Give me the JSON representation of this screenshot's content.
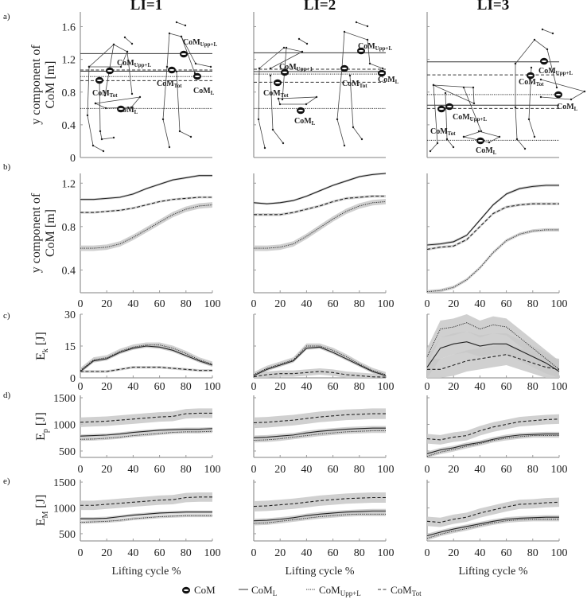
{
  "chart_data": {
    "type": "line",
    "columns": [
      "LI=1",
      "LI=2",
      "LI=3"
    ],
    "panel_letters": [
      "a)",
      "b)",
      "c)",
      "d)",
      "e)"
    ],
    "xlabel": "Lifting cycle %",
    "xticks": [
      0,
      20,
      40,
      60,
      80,
      100
    ],
    "x": [
      0,
      10,
      20,
      30,
      40,
      50,
      60,
      70,
      80,
      90,
      100
    ],
    "legend": {
      "position": "bottom",
      "items": [
        {
          "label": "CoM",
          "sub": "",
          "style": "marker"
        },
        {
          "label": "CoM",
          "sub": "L",
          "style": "solid"
        },
        {
          "label": "CoM",
          "sub": "Upp+L",
          "style": "dotted"
        },
        {
          "label": "CoM",
          "sub": "Tot",
          "style": "dashed"
        }
      ]
    },
    "rows": {
      "a": {
        "ylabel": [
          "y component of",
          "CoM [m]"
        ],
        "ylim": [
          0,
          1.78
        ],
        "yticks": [
          "0",
          "0.4",
          "0.8",
          "1.2",
          "1.6"
        ],
        "ytick_values": [
          0,
          0.4,
          0.8,
          1.2,
          1.6
        ],
        "annotation_labels": {
          "upp": "Upp+L",
          "upp_col2": "Upp+1",
          "tot": "Tot",
          "l": "L",
          "com": "CoM"
        },
        "reference_lines": [
          [
            {
              "y": 1.27,
              "style": "solid"
            },
            {
              "y": 1.07,
              "style": "dashed"
            },
            {
              "y": 1.055,
              "style": "solid"
            },
            {
              "y": 0.99,
              "style": "dotted"
            },
            {
              "y": 0.94,
              "style": "dashed"
            },
            {
              "y": 0.6,
              "style": "dotted"
            }
          ],
          [
            {
              "y": 1.28,
              "style": "solid"
            },
            {
              "y": 1.08,
              "style": "dashed"
            },
            {
              "y": 1.05,
              "style": "solid"
            },
            {
              "y": 1.02,
              "style": "dotted"
            },
            {
              "y": 0.92,
              "style": "dashed"
            },
            {
              "y": 0.6,
              "style": "dotted"
            }
          ],
          [
            {
              "y": 1.17,
              "style": "solid"
            },
            {
              "y": 1.01,
              "style": "dashed"
            },
            {
              "y": 0.77,
              "style": "dotted"
            },
            {
              "y": 0.64,
              "style": "solid"
            },
            {
              "y": 0.6,
              "style": "dashed"
            },
            {
              "y": 0.21,
              "style": "dotted"
            }
          ]
        ]
      },
      "b": {
        "ylabel": [
          "y component of",
          "CoM [m]"
        ],
        "ylim": [
          0.19,
          1.29
        ],
        "yticks": [
          "0.4",
          "0.8",
          "1.2"
        ],
        "ytick_values": [
          0.4,
          0.8,
          1.2
        ],
        "series": [
          [
            {
              "name": "CoM_L",
              "style": "solid",
              "sd": 0.01,
              "values": [
                1.05,
                1.05,
                1.06,
                1.07,
                1.1,
                1.15,
                1.19,
                1.23,
                1.25,
                1.27,
                1.27
              ]
            },
            {
              "name": "CoM_Tot",
              "style": "dashed",
              "sd": 0.01,
              "values": [
                0.93,
                0.93,
                0.94,
                0.95,
                0.97,
                1.0,
                1.03,
                1.05,
                1.06,
                1.07,
                1.07
              ]
            },
            {
              "name": "CoM_Upp+L",
              "style": "dotted",
              "sd": 0.025,
              "values": [
                0.6,
                0.6,
                0.61,
                0.64,
                0.7,
                0.77,
                0.84,
                0.91,
                0.96,
                0.99,
                1.0
              ]
            }
          ],
          [
            {
              "name": "CoM_L",
              "style": "solid",
              "sd": 0.01,
              "values": [
                1.02,
                1.01,
                1.02,
                1.04,
                1.08,
                1.13,
                1.18,
                1.22,
                1.26,
                1.28,
                1.29
              ]
            },
            {
              "name": "CoM_Tot",
              "style": "dashed",
              "sd": 0.012,
              "values": [
                0.91,
                0.91,
                0.91,
                0.93,
                0.96,
                0.99,
                1.03,
                1.06,
                1.07,
                1.08,
                1.08
              ]
            },
            {
              "name": "CoM_Upp+L",
              "style": "dotted",
              "sd": 0.025,
              "values": [
                0.6,
                0.6,
                0.61,
                0.64,
                0.71,
                0.79,
                0.87,
                0.94,
                0.99,
                1.02,
                1.03
              ]
            }
          ],
          [
            {
              "name": "CoM_L",
              "style": "solid",
              "sd": 0.012,
              "values": [
                0.63,
                0.64,
                0.66,
                0.72,
                0.86,
                1.0,
                1.1,
                1.15,
                1.17,
                1.18,
                1.18
              ]
            },
            {
              "name": "CoM_Tot",
              "style": "dashed",
              "sd": 0.012,
              "values": [
                0.59,
                0.61,
                0.62,
                0.68,
                0.8,
                0.92,
                0.98,
                1.0,
                1.01,
                1.01,
                1.01
              ]
            },
            {
              "name": "CoM_Upp+L",
              "style": "dotted",
              "sd": 0.015,
              "values": [
                0.2,
                0.21,
                0.24,
                0.31,
                0.42,
                0.56,
                0.67,
                0.73,
                0.76,
                0.77,
                0.77
              ]
            }
          ]
        ]
      },
      "c": {
        "ylabel": {
          "main": "E",
          "sub": "k",
          "unit": " [J]"
        },
        "ylim": [
          0,
          30
        ],
        "yticks": [
          "0",
          "15",
          "30"
        ],
        "ytick_values": [
          0,
          15,
          30
        ],
        "series": [
          [
            {
              "name": "CoM_L",
              "style": "solid",
              "sd": 0.8,
              "values": [
                3,
                8,
                9,
                12,
                14,
                15,
                14.5,
                13,
                10.5,
                8,
                6
              ]
            },
            {
              "name": "CoM_Upp+L",
              "style": "dotted",
              "sd": 1.2,
              "values": [
                3.5,
                8.5,
                9.5,
                12.5,
                14.5,
                15.5,
                15.5,
                14,
                11.5,
                8.5,
                6.5
              ]
            },
            {
              "name": "CoM_Tot",
              "style": "dashed",
              "sd": 0.6,
              "values": [
                3,
                3,
                3,
                4,
                5,
                5,
                5,
                4.5,
                4,
                3.5,
                3.5
              ]
            }
          ],
          [
            {
              "name": "CoM_L",
              "style": "solid",
              "sd": 0.8,
              "values": [
                1,
                4,
                6,
                8,
                14,
                14.5,
                12,
                9,
                6,
                3,
                1
              ]
            },
            {
              "name": "CoM_Upp+L",
              "style": "dotted",
              "sd": 1.2,
              "values": [
                1.5,
                4.5,
                6.5,
                8.5,
                15,
                15,
                13,
                10,
                6.5,
                3.5,
                1.5
              ]
            },
            {
              "name": "CoM_Tot",
              "style": "dashed",
              "sd": 1.5,
              "values": [
                0.5,
                1.5,
                2,
                2,
                2.5,
                3,
                2.5,
                1.5,
                1,
                0.5,
                0.3
              ]
            }
          ],
          [
            {
              "name": "CoM_L",
              "style": "solid",
              "sd": 5,
              "values": [
                5,
                14,
                16,
                17,
                15,
                16,
                16,
                13,
                10,
                7,
                3
              ]
            },
            {
              "name": "CoM_Upp+L",
              "style": "dotted",
              "sd": 4,
              "values": [
                10,
                23,
                24,
                26,
                23,
                25,
                24,
                19,
                14,
                9,
                4
              ]
            },
            {
              "name": "CoM_Tot",
              "style": "dashed",
              "sd": 5,
              "values": [
                4,
                4,
                6,
                8,
                9,
                10,
                11,
                9,
                7,
                5,
                4
              ]
            }
          ]
        ]
      },
      "d": {
        "ylabel": {
          "main": "E",
          "sub": "p",
          "unit": " [J]"
        },
        "ylim": [
          380,
          1545
        ],
        "yticks": [
          "500",
          "1000",
          "1500"
        ],
        "ytick_values": [
          500,
          1000,
          1500
        ],
        "series": [
          [
            {
              "name": "CoM_Tot",
              "style": "dashed",
              "sd": 90,
              "values": [
                1040,
                1050,
                1060,
                1080,
                1100,
                1120,
                1140,
                1150,
                1200,
                1210,
                1210
              ]
            },
            {
              "name": "CoM_L",
              "style": "solid",
              "sd": 30,
              "values": [
                780,
                790,
                800,
                820,
                850,
                870,
                890,
                900,
                910,
                910,
                920
              ]
            },
            {
              "name": "CoM_Upp+L",
              "style": "dotted",
              "sd": 30,
              "values": [
                720,
                725,
                740,
                760,
                790,
                810,
                830,
                850,
                860,
                860,
                870
              ]
            }
          ],
          [
            {
              "name": "CoM_Tot",
              "style": "dashed",
              "sd": 100,
              "values": [
                1030,
                1040,
                1060,
                1080,
                1110,
                1140,
                1160,
                1180,
                1190,
                1200,
                1200
              ]
            },
            {
              "name": "CoM_L",
              "style": "solid",
              "sd": 40,
              "values": [
                750,
                760,
                780,
                800,
                840,
                870,
                890,
                910,
                920,
                930,
                930
              ]
            },
            {
              "name": "CoM_Upp+L",
              "style": "dotted",
              "sd": 40,
              "values": [
                700,
                710,
                730,
                760,
                790,
                820,
                840,
                860,
                870,
                880,
                880
              ]
            }
          ],
          [
            {
              "name": "CoM_Tot",
              "style": "dashed",
              "sd": 90,
              "values": [
                730,
                710,
                760,
                790,
                880,
                950,
                1000,
                1050,
                1070,
                1090,
                1100
              ]
            },
            {
              "name": "CoM_L",
              "style": "solid",
              "sd": 40,
              "values": [
                450,
                520,
                560,
                620,
                660,
                720,
                770,
                800,
                810,
                820,
                820
              ]
            },
            {
              "name": "CoM_Upp+L",
              "style": "dotted",
              "sd": 40,
              "values": [
                400,
                480,
                530,
                590,
                640,
                700,
                740,
                770,
                790,
                790,
                790
              ]
            }
          ]
        ]
      },
      "e": {
        "ylabel": {
          "main": "E",
          "sub": "M",
          "unit": " [J]"
        },
        "ylim": [
          360,
          1547
        ],
        "yticks": [
          "500",
          "1000",
          "1500"
        ],
        "ytick_values": [
          500,
          1000,
          1500
        ],
        "series": [
          [
            {
              "name": "CoM_Tot",
              "style": "dashed",
              "sd": 90,
              "values": [
                1050,
                1050,
                1070,
                1090,
                1110,
                1130,
                1150,
                1160,
                1200,
                1210,
                1210
              ]
            },
            {
              "name": "CoM_L",
              "style": "solid",
              "sd": 30,
              "values": [
                790,
                790,
                800,
                830,
                860,
                880,
                900,
                910,
                920,
                920,
                920
              ]
            },
            {
              "name": "CoM_Upp+L",
              "style": "dotted",
              "sd": 30,
              "values": [
                720,
                730,
                740,
                760,
                790,
                810,
                830,
                840,
                850,
                850,
                850
              ]
            }
          ],
          [
            {
              "name": "CoM_Tot",
              "style": "dashed",
              "sd": 100,
              "values": [
                1030,
                1040,
                1060,
                1080,
                1110,
                1140,
                1160,
                1180,
                1190,
                1200,
                1200
              ]
            },
            {
              "name": "CoM_L",
              "style": "solid",
              "sd": 40,
              "values": [
                750,
                760,
                780,
                810,
                850,
                880,
                900,
                920,
                930,
                940,
                940
              ]
            },
            {
              "name": "CoM_Upp+L",
              "style": "dotted",
              "sd": 40,
              "values": [
                700,
                710,
                740,
                770,
                800,
                830,
                850,
                870,
                880,
                880,
                880
              ]
            }
          ],
          [
            {
              "name": "CoM_Tot",
              "style": "dashed",
              "sd": 90,
              "values": [
                740,
                720,
                780,
                820,
                900,
                960,
                1020,
                1070,
                1080,
                1100,
                1110
              ]
            },
            {
              "name": "CoM_L",
              "style": "solid",
              "sd": 40,
              "values": [
                460,
                530,
                590,
                640,
                690,
                740,
                780,
                800,
                810,
                820,
                820
              ]
            },
            {
              "name": "CoM_Upp+L",
              "style": "dotted",
              "sd": 40,
              "values": [
                410,
                490,
                550,
                600,
                660,
                710,
                750,
                770,
                780,
                780,
                780
              ]
            }
          ]
        ]
      }
    }
  },
  "colors": {
    "line": "#222222",
    "band": "#c8c8c8",
    "axis": "#9a9a9a"
  }
}
